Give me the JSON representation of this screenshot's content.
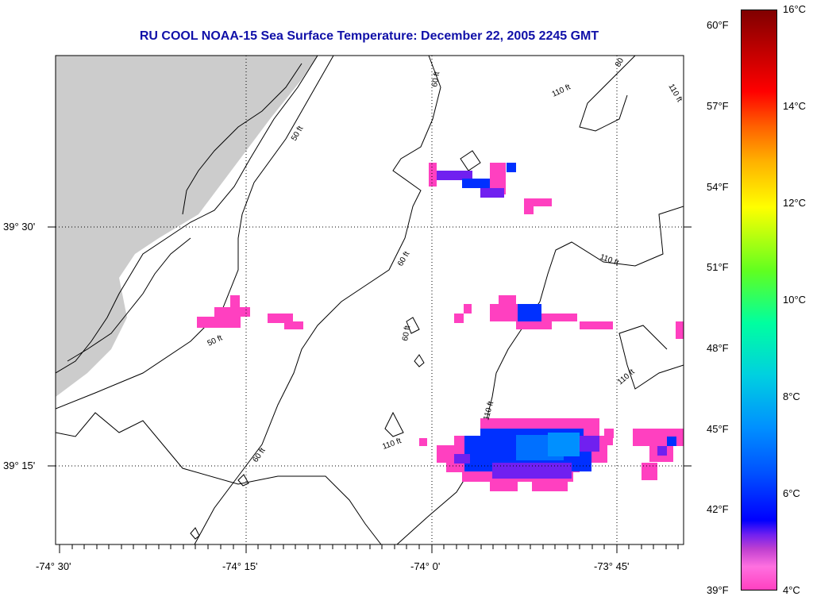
{
  "title": "RU COOL  NOAA-15  Sea Surface Temperature:  December 22, 2005 2245 GMT",
  "lat_labels": [
    "39° 30'",
    "39° 15'"
  ],
  "lon_labels": [
    "-74° 30'",
    "-74° 15'",
    "-74° 0'",
    "-73° 45'"
  ],
  "contour_labels": [
    "50 ft",
    "50 ft",
    "60 ft",
    "60 ft",
    "60 ft",
    "60 ft",
    "80",
    "110 ft",
    "110 ft",
    "110 ft",
    "110 ft",
    "110 ft",
    "110 ft"
  ],
  "colorbar": {
    "fahrenheit_labels": [
      "60°F",
      "57°F",
      "54°F",
      "51°F",
      "48°F",
      "45°F",
      "42°F",
      "39°F"
    ],
    "celsius_labels": [
      "16°C",
      "14°C",
      "12°C",
      "10°C",
      "8°C",
      "6°C",
      "4°C"
    ],
    "range_celsius": [
      4,
      16
    ]
  },
  "colors": {
    "title": "#1010a8",
    "land": "#cccccc",
    "temp_pink": "#ff40c0",
    "temp_purple": "#7020f0",
    "temp_blue": "#0030ff",
    "temp_lightblue": "#0090ff"
  }
}
